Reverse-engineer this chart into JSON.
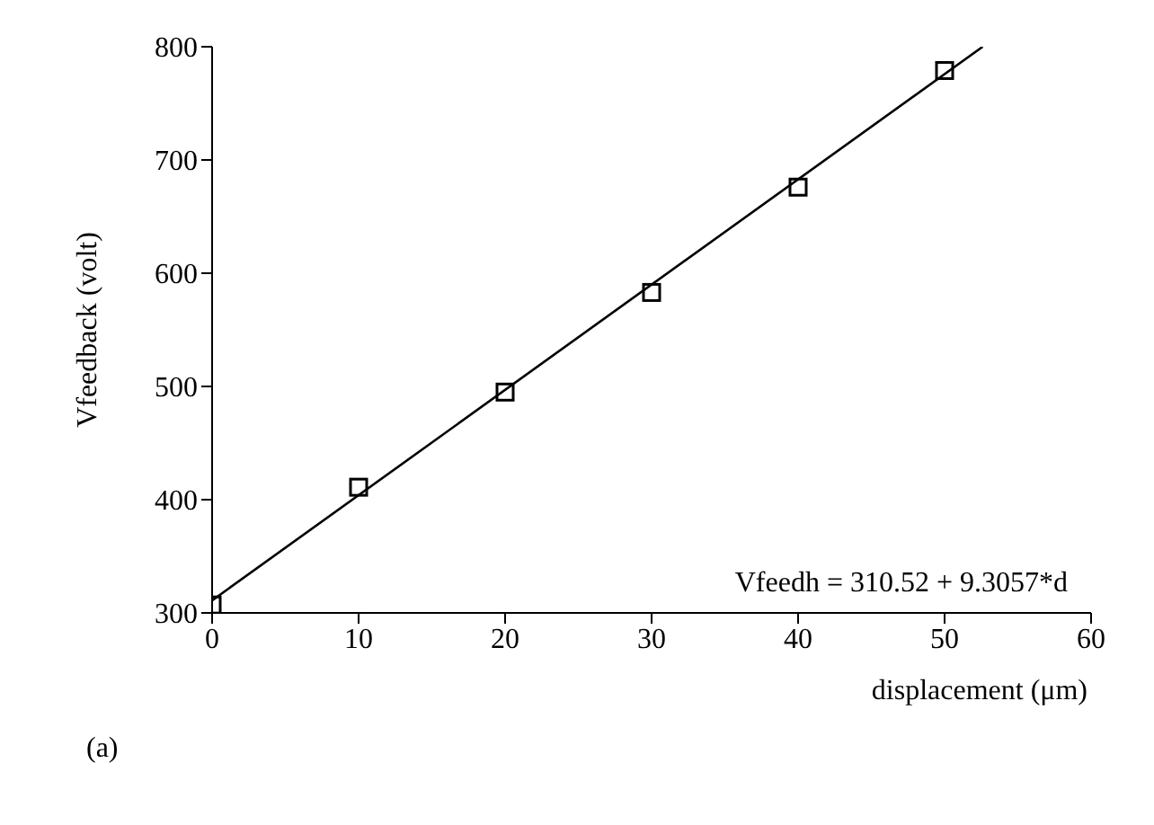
{
  "chart_data": {
    "type": "scatter",
    "xlabel": "displacement (μm)",
    "ylabel": "Vfeedback (volt)",
    "annotations": [
      "Vfeedh = 310.52 + 9.3057*d",
      "(a)"
    ],
    "xlim": [
      0,
      60
    ],
    "xticks": [
      0,
      10,
      20,
      30,
      40,
      50,
      60
    ],
    "ylim": [
      300,
      800
    ],
    "yticks": [
      300,
      400,
      500,
      600,
      700,
      800
    ],
    "grid": false,
    "legend": false,
    "series": [
      {
        "color": "#000000",
        "marker": "square",
        "x": [
          0,
          10,
          20,
          30,
          40,
          50
        ],
        "values": [
          307,
          411,
          495,
          583,
          676,
          779
        ]
      },
      {
        "type": "line",
        "color": "#000000",
        "marker": "none",
        "line_style": "solid",
        "x": [
          0,
          52.6
        ],
        "values": [
          311,
          800
        ]
      }
    ]
  }
}
